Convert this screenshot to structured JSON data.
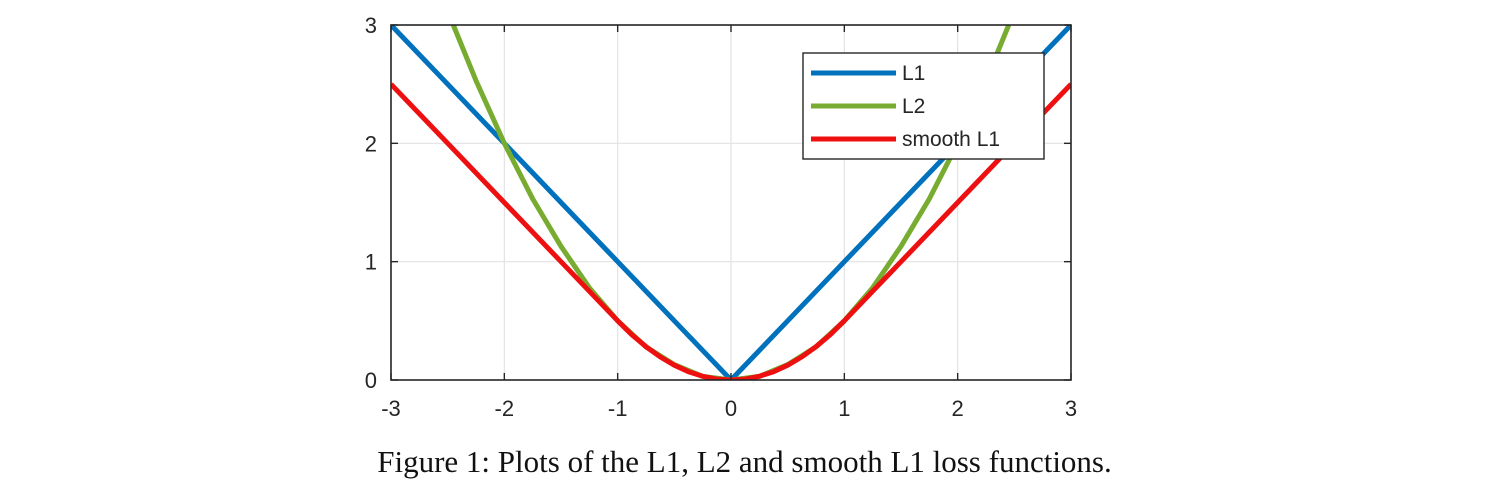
{
  "chart_data": {
    "type": "line",
    "title": "",
    "xlabel": "",
    "ylabel": "",
    "xlim": [
      -3,
      3
    ],
    "ylim": [
      0,
      3
    ],
    "grid": true,
    "legend_position": "top-right",
    "xticks": [
      -3,
      -2,
      -1,
      0,
      1,
      2,
      3
    ],
    "xtick_labels": [
      "-3",
      "-2",
      "-1",
      "0",
      "1",
      "2",
      "3"
    ],
    "yticks": [
      0,
      1,
      2,
      3
    ],
    "ytick_labels": [
      "0",
      "1",
      "2",
      "3"
    ],
    "series": [
      {
        "name": "L1",
        "color": "#0072BD",
        "x": [
          -3,
          -2.5,
          -2,
          -1.5,
          -1,
          -0.5,
          0,
          0.5,
          1,
          1.5,
          2,
          2.5,
          3
        ],
        "y": [
          3,
          2.5,
          2,
          1.5,
          1,
          0.5,
          0,
          0.5,
          1,
          1.5,
          2,
          2.5,
          3
        ]
      },
      {
        "name": "L2",
        "color": "#77AC30",
        "x": [
          -2.45,
          -2.25,
          -2,
          -1.75,
          -1.5,
          -1.25,
          -1,
          -0.75,
          -0.5,
          -0.25,
          0,
          0.25,
          0.5,
          0.75,
          1,
          1.25,
          1.5,
          1.75,
          2,
          2.25,
          2.45
        ],
        "y": [
          3.0,
          2.53,
          2.0,
          1.53,
          1.13,
          0.78,
          0.5,
          0.28,
          0.13,
          0.03,
          0,
          0.03,
          0.13,
          0.28,
          0.5,
          0.78,
          1.13,
          1.53,
          2.0,
          2.53,
          3.0
        ]
      },
      {
        "name": "smooth L1",
        "color": "#EE1010",
        "x": [
          -3,
          -2.5,
          -2,
          -1.5,
          -1,
          -0.875,
          -0.75,
          -0.625,
          -0.5,
          -0.375,
          -0.25,
          -0.125,
          0,
          0.125,
          0.25,
          0.375,
          0.5,
          0.625,
          0.75,
          0.875,
          1,
          1.5,
          2,
          2.5,
          3
        ],
        "y": [
          2.5,
          2.0,
          1.5,
          1.0,
          0.5,
          0.383,
          0.281,
          0.195,
          0.125,
          0.07,
          0.031,
          0.008,
          0,
          0.008,
          0.031,
          0.07,
          0.125,
          0.195,
          0.281,
          0.383,
          0.5,
          1.0,
          1.5,
          2.0,
          2.5
        ]
      }
    ]
  },
  "caption": "Figure 1: Plots of the L1, L2 and smooth L1 loss functions."
}
